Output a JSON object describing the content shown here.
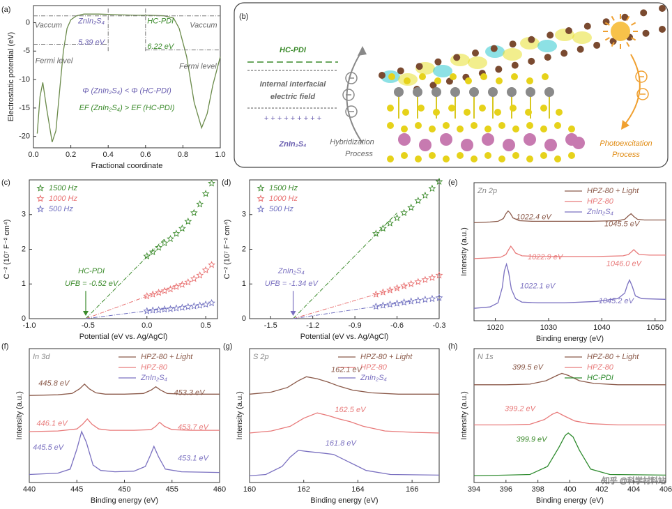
{
  "chart_data": [
    {
      "type": "line",
      "panel_label": "(a)",
      "xlabel": "Fractional coordinate",
      "ylabel": "Electrostatic potential (eV)",
      "xlim": [
        0,
        1
      ],
      "ylim": [
        -22,
        3
      ],
      "xticks": [
        {
          "value": 0,
          "label": "0.0"
        },
        0.2,
        0.4,
        0.6,
        0.8,
        {
          "value": 1,
          "label": "1.0"
        }
      ],
      "yticks": [
        -20,
        -15,
        -10,
        -5,
        0
      ],
      "series": [
        {
          "color": "#6a8a4a",
          "style": "line",
          "x": [
            0.02,
            0.035,
            0.05,
            0.07,
            0.1,
            0.12,
            0.14,
            0.16,
            0.18,
            0.2,
            0.23,
            0.27,
            0.35,
            0.45,
            0.55,
            0.62,
            0.7,
            0.75,
            0.78,
            0.82,
            0.86,
            0.9,
            0.93,
            0.96,
            1.0
          ],
          "values": [
            -19.5,
            -13,
            -10.5,
            -15,
            -21,
            -19,
            -12,
            -5,
            -1,
            0.5,
            1.2,
            1.5,
            1.5,
            1.4,
            1.3,
            1.3,
            1.2,
            0.8,
            -1,
            -6,
            -14,
            -18.5,
            -16,
            -11,
            -6
          ]
        },
        {
          "color": "#777777",
          "style": "dashdot",
          "x": [
            0,
            1
          ],
          "values": [
            1.2,
            1.2
          ]
        },
        {
          "color": "#777777",
          "style": "dashdot",
          "x": [
            0,
            0.4
          ],
          "values": [
            -3.8,
            -3.8
          ]
        },
        {
          "color": "#777777",
          "style": "dashdot",
          "x": [
            0.6,
            1
          ],
          "values": [
            -4.8,
            -4.8
          ]
        },
        {
          "color": "#777777",
          "style": "dashdot",
          "x": [
            0.4,
            0.4
          ],
          "values": [
            -5,
            2.5
          ]
        },
        {
          "color": "#777777",
          "style": "dashdot",
          "x": [
            0.6,
            0.6
          ],
          "values": [
            -5,
            2.5
          ]
        }
      ],
      "annotations": [
        "ZnIn₂S₄",
        "HC-PDI",
        "Vaccum",
        "Vaccum",
        "5.39 eV",
        "6.22 eV",
        "Fermi level",
        "Fermi level",
        "Φ (ZnIn₂S₄) < Φ (HC-PDI)",
        "EF (ZnIn₂S₄) > EF (HC-PDI)"
      ]
    },
    {
      "type": "scatter",
      "panel_label": "(c)",
      "xlabel": "Potential (eV vs. Ag/AgCl)",
      "ylabel": "C⁻² (10⁷ F⁻² cm⁴)",
      "xlim": [
        -1,
        0.6
      ],
      "ylim": [
        0,
        4
      ],
      "xticks": [
        {
          "value": -1,
          "label": "-1.0"
        },
        -0.5,
        {
          "value": 0,
          "label": "0.0"
        },
        0.5
      ],
      "yticks": [
        0,
        1,
        2,
        3
      ],
      "legend": "upper left",
      "series": [
        {
          "name": "1500 Hz",
          "color": "#3a8a2a",
          "style": "stars",
          "x": [
            0,
            0.05,
            0.1,
            0.15,
            0.2,
            0.25,
            0.3,
            0.35,
            0.4,
            0.45,
            0.5,
            0.55
          ],
          "values": [
            1.8,
            1.92,
            2.05,
            2.18,
            2.3,
            2.45,
            2.6,
            2.8,
            3.05,
            3.3,
            3.6,
            3.9
          ]
        },
        {
          "name": "1000 Hz",
          "color": "#e87070",
          "style": "stars",
          "x": [
            0,
            0.05,
            0.1,
            0.15,
            0.2,
            0.25,
            0.3,
            0.35,
            0.4,
            0.45,
            0.5,
            0.55
          ],
          "values": [
            0.65,
            0.7,
            0.75,
            0.8,
            0.85,
            0.92,
            0.98,
            1.05,
            1.15,
            1.25,
            1.4,
            1.55
          ]
        },
        {
          "name": "500 Hz",
          "color": "#7070c0",
          "style": "stars",
          "x": [
            0,
            0.05,
            0.1,
            0.15,
            0.2,
            0.25,
            0.3,
            0.35,
            0.4,
            0.45,
            0.5,
            0.55
          ],
          "values": [
            0.22,
            0.24,
            0.25,
            0.27,
            0.28,
            0.3,
            0.32,
            0.34,
            0.36,
            0.38,
            0.41,
            0.45
          ]
        },
        {
          "color": "#3a8a2a",
          "style": "dashdot",
          "x": [
            -0.52,
            0.15
          ],
          "values": [
            0,
            2.3
          ]
        },
        {
          "color": "#e87070",
          "style": "dashdot",
          "x": [
            -0.52,
            0.3
          ],
          "values": [
            0,
            1.02
          ]
        },
        {
          "color": "#7070c0",
          "style": "dashdot",
          "x": [
            -0.52,
            0.25
          ],
          "values": [
            0,
            0.33
          ]
        }
      ],
      "annotations": [
        "HC-PDI",
        "UFB = -0.52 eV"
      ]
    },
    {
      "type": "scatter",
      "panel_label": "(d)",
      "xlabel": "Potential (eV vs. Ag/AgCl)",
      "ylabel": "C⁻² (10⁷ F⁻² cm⁴)",
      "xlim": [
        -1.65,
        -0.3
      ],
      "ylim": [
        0,
        4
      ],
      "xticks": [
        -1.5,
        -1.2,
        -0.9,
        -0.6,
        -0.3
      ],
      "yticks": [
        0,
        1,
        2,
        3
      ],
      "legend": "upper left",
      "series": [
        {
          "name": "1500 Hz",
          "color": "#3a8a2a",
          "style": "stars",
          "x": [
            -0.75,
            -0.7,
            -0.65,
            -0.6,
            -0.55,
            -0.5,
            -0.45,
            -0.4,
            -0.35,
            -0.3
          ],
          "values": [
            2.45,
            2.6,
            2.75,
            2.9,
            3.05,
            3.2,
            3.4,
            3.55,
            3.75,
            3.95
          ]
        },
        {
          "name": "1000 Hz",
          "color": "#e87070",
          "style": "stars",
          "x": [
            -0.75,
            -0.7,
            -0.65,
            -0.6,
            -0.55,
            -0.5,
            -0.45,
            -0.4,
            -0.35,
            -0.3
          ],
          "values": [
            0.7,
            0.76,
            0.82,
            0.88,
            0.94,
            1.0,
            1.06,
            1.12,
            1.18,
            1.25
          ]
        },
        {
          "name": "500 Hz",
          "color": "#7070c0",
          "style": "stars",
          "x": [
            -0.75,
            -0.7,
            -0.65,
            -0.6,
            -0.55,
            -0.5,
            -0.45,
            -0.4,
            -0.35,
            -0.3
          ],
          "values": [
            0.35,
            0.38,
            0.41,
            0.44,
            0.47,
            0.5,
            0.52,
            0.55,
            0.57,
            0.6
          ]
        },
        {
          "color": "#3a8a2a",
          "style": "dashdot",
          "x": [
            -1.34,
            -0.6
          ],
          "values": [
            0,
            3.05
          ]
        },
        {
          "color": "#e87070",
          "style": "dashdot",
          "x": [
            -1.34,
            -0.5
          ],
          "values": [
            0,
            1.0
          ]
        },
        {
          "color": "#7070c0",
          "style": "dashdot",
          "x": [
            -1.34,
            -0.5
          ],
          "values": [
            0,
            0.5
          ]
        }
      ],
      "annotations": [
        "ZnIn₂S₄",
        "UFB = -1.34 eV"
      ]
    },
    {
      "type": "line",
      "panel_label": "(e)",
      "title": "Zn 2p",
      "xlabel": "Binding energy (eV)",
      "ylabel": "Intensity (a.u.)",
      "xlim": [
        1016,
        1052
      ],
      "ylim": [
        0,
        10
      ],
      "xticks": [
        1020,
        1030,
        1040,
        1050
      ],
      "legend": "upper right",
      "series": [
        {
          "name": "HPZ-80 + Light",
          "color": "#8b5a4a",
          "style": "line",
          "x": [
            1016,
            1019,
            1020.5,
            1021.5,
            1022,
            1022.4,
            1022.8,
            1023.3,
            1024.5,
            1027,
            1032,
            1038,
            1043,
            1044.3,
            1045,
            1045.5,
            1046,
            1046.7,
            1048,
            1052
          ],
          "values": [
            7.1,
            7.15,
            7.2,
            7.4,
            7.75,
            7.95,
            7.8,
            7.45,
            7.25,
            7.2,
            7.2,
            7.2,
            7.25,
            7.35,
            7.6,
            7.75,
            7.55,
            7.35,
            7.3,
            7.3
          ]
        },
        {
          "name": "HPZ-80",
          "color": "#e87a7a",
          "style": "line",
          "x": [
            1016,
            1019,
            1021,
            1022,
            1022.5,
            1022.9,
            1023.3,
            1023.8,
            1025,
            1028,
            1033,
            1039,
            1044,
            1045,
            1045.6,
            1046,
            1046.4,
            1047,
            1049,
            1052
          ],
          "values": [
            4.5,
            4.55,
            4.6,
            4.8,
            5.15,
            5.4,
            5.2,
            4.9,
            4.7,
            4.65,
            4.65,
            4.65,
            4.7,
            4.8,
            5.0,
            5.15,
            5.0,
            4.8,
            4.75,
            4.75
          ]
        },
        {
          "name": "ZnIn₂S₄",
          "color": "#7a70c0",
          "style": "line",
          "x": [
            1016,
            1019,
            1020.5,
            1021.3,
            1021.7,
            1022.1,
            1022.5,
            1023,
            1023.8,
            1025,
            1028,
            1033,
            1039,
            1043,
            1044.3,
            1044.8,
            1045.2,
            1045.7,
            1046.3,
            1047.5,
            1052
          ],
          "values": [
            0.9,
            1.0,
            1.3,
            2.4,
            3.6,
            4.1,
            3.5,
            2.3,
            1.6,
            1.35,
            1.3,
            1.3,
            1.4,
            1.6,
            2.0,
            2.6,
            2.95,
            2.5,
            1.8,
            1.6,
            1.55
          ]
        }
      ],
      "annotations": [
        "1022.4 eV",
        "1045.5 eV",
        "1022.9 eV",
        "1046.0 eV",
        "1022.1 eV",
        "1045.2 eV"
      ]
    },
    {
      "type": "line",
      "panel_label": "(f)",
      "title": "In 3d",
      "xlabel": "Binding energy (eV)",
      "ylabel": "Intensity (a.u.)",
      "xlim": [
        440,
        460
      ],
      "ylim": [
        0,
        10
      ],
      "xticks": [
        440,
        445,
        450,
        455,
        460
      ],
      "legend": "upper right",
      "series": [
        {
          "name": "HPZ-80 + Light",
          "color": "#8b5a4a",
          "style": "line",
          "x": [
            440,
            443,
            444.5,
            445.3,
            445.8,
            446.3,
            447,
            448,
            450,
            452,
            452.8,
            453.3,
            453.8,
            454.5,
            456,
            460
          ],
          "values": [
            6.5,
            6.55,
            6.65,
            7.0,
            7.35,
            7.0,
            6.7,
            6.6,
            6.6,
            6.65,
            6.9,
            7.15,
            6.9,
            6.65,
            6.6,
            6.6
          ]
        },
        {
          "name": "HPZ-80",
          "color": "#e87a7a",
          "style": "line",
          "x": [
            440,
            443,
            445,
            445.6,
            446.1,
            446.6,
            447.3,
            448.5,
            451,
            452.8,
            453.3,
            453.7,
            454.2,
            455,
            457,
            460
          ],
          "values": [
            3.8,
            3.85,
            4.0,
            4.35,
            4.75,
            4.35,
            4.0,
            3.9,
            3.9,
            3.95,
            4.2,
            4.5,
            4.2,
            3.95,
            3.9,
            3.9
          ]
        },
        {
          "name": "ZnIn₂S₄",
          "color": "#7a70c0",
          "style": "line",
          "x": [
            440,
            443,
            444.3,
            445,
            445.5,
            446,
            446.7,
            447.5,
            449,
            451,
            452.2,
            452.7,
            453.1,
            453.6,
            454.3,
            456,
            460
          ],
          "values": [
            0.6,
            0.7,
            1.0,
            2.5,
            3.8,
            3.0,
            1.3,
            0.9,
            0.8,
            0.85,
            1.2,
            2.0,
            2.7,
            1.9,
            1.0,
            0.8,
            0.75
          ]
        }
      ],
      "annotations": [
        "445.8 eV",
        "453.3 eV",
        "446.1 eV",
        "453.7 eV",
        "445.5 eV",
        "453.1 eV"
      ]
    },
    {
      "type": "line",
      "panel_label": "(g)",
      "title": "S 2p",
      "xlabel": "Binding energy (eV)",
      "ylabel": "Intensity (a.u.)",
      "xlim": [
        160,
        167
      ],
      "ylim": [
        0,
        10
      ],
      "xticks": [
        160,
        162,
        164,
        166
      ],
      "legend": "upper right",
      "series": [
        {
          "name": "HPZ-80 + Light",
          "color": "#8b5a4a",
          "style": "line",
          "x": [
            160,
            160.8,
            161.4,
            161.8,
            162.1,
            162.5,
            162.9,
            163.3,
            163.8,
            164.5,
            165.5,
            167
          ],
          "values": [
            6.6,
            6.75,
            7.1,
            7.6,
            7.9,
            7.75,
            7.5,
            7.2,
            6.9,
            6.7,
            6.6,
            6.6
          ]
        },
        {
          "name": "HPZ-80",
          "color": "#e87a7a",
          "style": "line",
          "x": [
            160,
            160.8,
            161.5,
            162,
            162.5,
            162.9,
            163.3,
            163.7,
            164.2,
            165,
            166,
            167
          ],
          "values": [
            3.7,
            3.85,
            4.2,
            4.8,
            5.2,
            5.0,
            4.75,
            4.55,
            4.2,
            3.85,
            3.75,
            3.7
          ]
        },
        {
          "name": "ZnIn₂S₄",
          "color": "#7a70c0",
          "style": "line",
          "x": [
            160,
            160.6,
            161.2,
            161.5,
            161.8,
            162.2,
            162.7,
            163.1,
            163.6,
            164.3,
            165.2,
            167
          ],
          "values": [
            0.5,
            0.6,
            1.2,
            1.9,
            2.4,
            2.3,
            2.2,
            2.1,
            1.6,
            0.9,
            0.6,
            0.55
          ]
        }
      ],
      "annotations": [
        "162.1 eV",
        "162.5 eV",
        "161.8 eV"
      ]
    },
    {
      "type": "line",
      "panel_label": "(h)",
      "title": "N 1s",
      "xlabel": "Binding energy (eV)",
      "ylabel": "Intensity (a.u.)",
      "xlim": [
        394,
        406
      ],
      "ylim": [
        0,
        10
      ],
      "xticks": [
        394,
        396,
        398,
        400,
        402,
        404,
        406
      ],
      "legend": "upper right",
      "series": [
        {
          "name": "HPZ-80 + Light",
          "color": "#8b5a4a",
          "style": "line",
          "x": [
            394,
            396,
            397.5,
            398.5,
            399.2,
            399.5,
            399.9,
            400.6,
            401.5,
            403,
            406
          ],
          "values": [
            7.3,
            7.3,
            7.35,
            7.6,
            8.0,
            8.15,
            8.0,
            7.6,
            7.4,
            7.3,
            7.3
          ]
        },
        {
          "name": "HPZ-80",
          "color": "#e87a7a",
          "style": "line",
          "x": [
            394,
            396,
            397.5,
            398.4,
            398.9,
            399.2,
            399.6,
            400.3,
            401.2,
            403,
            406
          ],
          "values": [
            4.3,
            4.3,
            4.35,
            4.7,
            5.1,
            5.25,
            5.0,
            4.6,
            4.4,
            4.3,
            4.3
          ]
        },
        {
          "name": "HC-PDI",
          "color": "#2e8b2e",
          "style": "line",
          "x": [
            394,
            396,
            397.5,
            398.6,
            399.3,
            399.7,
            399.9,
            400.2,
            400.6,
            401.3,
            402.5,
            406
          ],
          "values": [
            0.5,
            0.55,
            0.6,
            1.2,
            2.6,
            3.5,
            3.7,
            3.4,
            2.4,
            1.0,
            0.6,
            0.55
          ]
        }
      ],
      "annotations": [
        "399.5 eV",
        "399.2 eV",
        "399.9 eV"
      ]
    }
  ],
  "diagram": {
    "label": "(b)",
    "top_layer": "HC-PDI",
    "field_label": [
      "Internal interfacial",
      "electric field"
    ],
    "charges": "+ + + + + + + + +",
    "bottom_layer": "ZnIn₂S₄",
    "left_process": [
      "Hybridization",
      "Process"
    ],
    "right_process": [
      "Photoexcitation",
      "Process"
    ]
  },
  "watermark": "知乎 @科学材料站"
}
